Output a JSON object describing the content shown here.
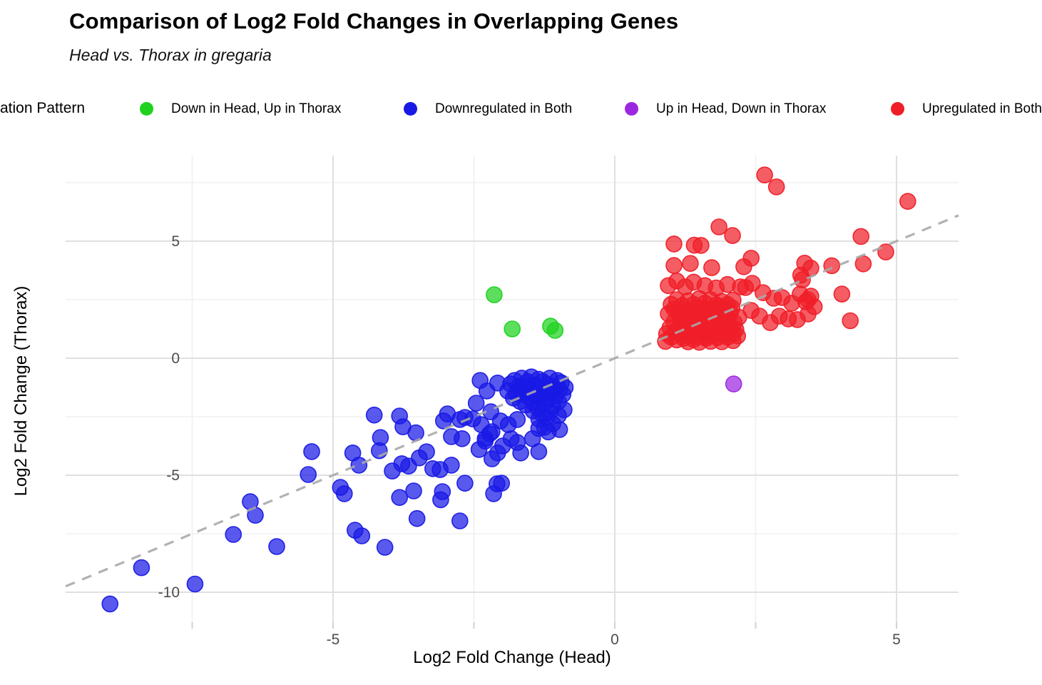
{
  "header": {
    "title": "Comparison of Log2 Fold Changes in Overlapping Genes",
    "subtitle": "Head vs. Thorax in gregaria"
  },
  "legend": {
    "title_visible": "ation Pattern",
    "items": [
      {
        "label": "Down in Head, Up in Thorax",
        "color": "#1ed21e"
      },
      {
        "label": "Downregulated in Both",
        "color": "#1919e6"
      },
      {
        "label": "Up in Head, Down in Thorax",
        "color": "#9c27e0"
      },
      {
        "label": "Upregulated in Both",
        "color": "#f01e28"
      }
    ]
  },
  "axes": {
    "x_title": "Log2 Fold Change (Head)",
    "y_title": "Log2 Fold Change (Thorax)"
  },
  "chart_data": {
    "type": "scatter",
    "title": "Comparison of Log2 Fold Changes in Overlapping Genes",
    "subtitle": "Head vs. Thorax in gregaria",
    "xlabel": "Log2 Fold Change (Head)",
    "ylabel": "Log2 Fold Change (Thorax)",
    "xlim": [
      -9.75,
      6.1
    ],
    "ylim": [
      -11.5,
      8.66
    ],
    "x_ticks_major": [
      -5,
      0,
      5
    ],
    "x_ticks_minor": [
      -7.5,
      -2.5,
      2.5
    ],
    "y_ticks_major": [
      5,
      0,
      -5,
      -10
    ],
    "y_ticks_minor": [
      7.5,
      2.5,
      -2.5,
      -7.5
    ],
    "grid": true,
    "legend_position": "top",
    "identity_line": {
      "style": "dashed",
      "color": "#a9a9a9",
      "slope": 1,
      "intercept": 0
    },
    "series": [
      {
        "name": "Down in Head, Up in Thorax",
        "color": "#1ed21e",
        "points": [
          [
            -2.14,
            2.71
          ],
          [
            -1.82,
            1.25
          ],
          [
            -1.14,
            1.37
          ],
          [
            -1.06,
            1.19
          ]
        ]
      },
      {
        "name": "Downregulated in Both",
        "color": "#1919e6",
        "points": [
          [
            -1.9,
            -1.4
          ],
          [
            -1.85,
            -1.1
          ],
          [
            -1.8,
            -1.7
          ],
          [
            -1.78,
            -0.95
          ],
          [
            -1.75,
            -1.5
          ],
          [
            -1.7,
            -1.2
          ],
          [
            -1.68,
            -1.85
          ],
          [
            -1.65,
            -0.85
          ],
          [
            -1.62,
            -1.55
          ],
          [
            -1.6,
            -1.25
          ],
          [
            -1.58,
            -2.0
          ],
          [
            -1.55,
            -1.0
          ],
          [
            -1.52,
            -1.65
          ],
          [
            -1.5,
            -1.35
          ],
          [
            -1.48,
            -0.8
          ],
          [
            -1.45,
            -1.9
          ],
          [
            -1.42,
            -1.15
          ],
          [
            -1.4,
            -1.55
          ],
          [
            -1.38,
            -2.1
          ],
          [
            -1.35,
            -0.9
          ],
          [
            -1.32,
            -1.7
          ],
          [
            -1.3,
            -1.3
          ],
          [
            -1.28,
            -1.0
          ],
          [
            -1.25,
            -1.95
          ],
          [
            -1.22,
            -1.5
          ],
          [
            -1.2,
            -1.12
          ],
          [
            -1.18,
            -1.75
          ],
          [
            -1.15,
            -0.85
          ],
          [
            -1.12,
            -1.4
          ],
          [
            -1.1,
            -2.05
          ],
          [
            -1.08,
            -1.2
          ],
          [
            -1.05,
            -1.6
          ],
          [
            -1.02,
            -0.95
          ],
          [
            -1.0,
            -1.85
          ],
          [
            -0.98,
            -1.35
          ],
          [
            -0.95,
            -1.05
          ],
          [
            -0.92,
            -1.55
          ],
          [
            -0.9,
            -2.2
          ],
          [
            -0.88,
            -1.25
          ],
          [
            -1.3,
            -2.35
          ],
          [
            -1.15,
            -2.3
          ],
          [
            -1.45,
            -2.25
          ],
          [
            -1.0,
            -2.45
          ],
          [
            -1.2,
            -2.55
          ],
          [
            -1.35,
            -2.6
          ],
          [
            -1.1,
            -2.8
          ],
          [
            -1.25,
            -2.95
          ],
          [
            -0.98,
            -3.05
          ],
          [
            -1.35,
            -3.0
          ],
          [
            -1.18,
            -3.15
          ],
          [
            -2.39,
            -0.95
          ],
          [
            -2.08,
            -1.06
          ],
          [
            -2.46,
            -1.92
          ],
          [
            -2.27,
            -1.4
          ],
          [
            -2.2,
            -2.29
          ],
          [
            -2.52,
            -2.59
          ],
          [
            -2.37,
            -2.84
          ],
          [
            -2.18,
            -3.14
          ],
          [
            -2.03,
            -2.68
          ],
          [
            -1.89,
            -2.84
          ],
          [
            -1.73,
            -2.62
          ],
          [
            -1.84,
            -3.44
          ],
          [
            -1.99,
            -3.75
          ],
          [
            -1.73,
            -3.6
          ],
          [
            -1.46,
            -3.44
          ],
          [
            -1.35,
            -3.99
          ],
          [
            -1.67,
            -4.05
          ],
          [
            -2.08,
            -4.05
          ],
          [
            -2.3,
            -3.44
          ],
          [
            -2.66,
            -2.53
          ],
          [
            -2.75,
            -2.62
          ],
          [
            -2.97,
            -2.38
          ],
          [
            -3.04,
            -2.68
          ],
          [
            -2.9,
            -3.35
          ],
          [
            -2.71,
            -3.44
          ],
          [
            -2.22,
            -3.23
          ],
          [
            -2.3,
            -3.54
          ],
          [
            -2.41,
            -3.9
          ],
          [
            -2.18,
            -4.3
          ],
          [
            -2.09,
            -5.37
          ],
          [
            -2.15,
            -5.79
          ],
          [
            -2.01,
            -5.34
          ],
          [
            -2.66,
            -5.34
          ],
          [
            -2.75,
            -6.95
          ],
          [
            -2.9,
            -4.57
          ],
          [
            -3.1,
            -4.76
          ],
          [
            -3.23,
            -4.72
          ],
          [
            -3.34,
            -4.0
          ],
          [
            -3.47,
            -4.26
          ],
          [
            -3.53,
            -3.19
          ],
          [
            -3.76,
            -2.93
          ],
          [
            -3.82,
            -2.47
          ],
          [
            -4.27,
            -2.43
          ],
          [
            -4.16,
            -3.39
          ],
          [
            -4.18,
            -3.95
          ],
          [
            -3.95,
            -4.82
          ],
          [
            -3.78,
            -4.51
          ],
          [
            -3.66,
            -4.61
          ],
          [
            -3.82,
            -5.95
          ],
          [
            -3.57,
            -5.67
          ],
          [
            -3.06,
            -5.7
          ],
          [
            -3.09,
            -6.05
          ],
          [
            -3.51,
            -6.85
          ],
          [
            -4.08,
            -8.08
          ],
          [
            -4.61,
            -7.35
          ],
          [
            -4.49,
            -7.59
          ],
          [
            -4.87,
            -5.52
          ],
          [
            -4.8,
            -5.79
          ],
          [
            -5.38,
            -3.99
          ],
          [
            -5.44,
            -4.97
          ],
          [
            -4.65,
            -4.05
          ],
          [
            -4.54,
            -4.57
          ],
          [
            -6.47,
            -6.13
          ],
          [
            -6.38,
            -6.71
          ],
          [
            -6.77,
            -7.53
          ],
          [
            -6.0,
            -8.05
          ],
          [
            -7.45,
            -9.65
          ],
          [
            -8.4,
            -8.95
          ],
          [
            -8.96,
            -10.5
          ]
        ]
      },
      {
        "name": "Up in Head, Down in Thorax",
        "color": "#9c27e0",
        "points": [
          [
            2.11,
            -1.1
          ]
        ]
      },
      {
        "name": "Upregulated in Both",
        "color": "#f01e28",
        "points": [
          [
            0.92,
            1.05
          ],
          [
            0.98,
            1.3
          ],
          [
            1.0,
            0.9
          ],
          [
            1.05,
            1.55
          ],
          [
            1.08,
            1.15
          ],
          [
            1.1,
            0.78
          ],
          [
            1.12,
            1.95
          ],
          [
            1.15,
            1.35
          ],
          [
            1.18,
            1.02
          ],
          [
            1.2,
            1.7
          ],
          [
            1.22,
            0.85
          ],
          [
            1.25,
            1.45
          ],
          [
            1.28,
            1.18
          ],
          [
            1.3,
            2.05
          ],
          [
            1.32,
            0.95
          ],
          [
            1.35,
            1.6
          ],
          [
            1.38,
            1.25
          ],
          [
            1.4,
            0.8
          ],
          [
            1.42,
            1.9
          ],
          [
            1.45,
            1.1
          ],
          [
            1.48,
            1.5
          ],
          [
            1.5,
            0.92
          ],
          [
            1.52,
            1.75
          ],
          [
            1.55,
            1.3
          ],
          [
            1.58,
            1.05
          ],
          [
            1.6,
            2.1
          ],
          [
            1.62,
            0.85
          ],
          [
            1.65,
            1.55
          ],
          [
            1.68,
            1.2
          ],
          [
            1.7,
            0.95
          ],
          [
            1.72,
            1.8
          ],
          [
            1.75,
            1.4
          ],
          [
            1.78,
            1.08
          ],
          [
            1.8,
            2.0
          ],
          [
            1.82,
            0.88
          ],
          [
            1.85,
            1.62
          ],
          [
            1.88,
            1.28
          ],
          [
            1.9,
            1.0
          ],
          [
            1.92,
            1.85
          ],
          [
            1.95,
            1.48
          ],
          [
            1.98,
            1.15
          ],
          [
            2.0,
            0.9
          ],
          [
            2.02,
            1.68
          ],
          [
            2.05,
            1.32
          ],
          [
            2.08,
            2.15
          ],
          [
            2.1,
            1.05
          ],
          [
            2.12,
            1.52
          ],
          [
            2.15,
            1.22
          ],
          [
            2.18,
            0.95
          ],
          [
            2.2,
            1.75
          ],
          [
            1.0,
            2.3
          ],
          [
            1.1,
            2.5
          ],
          [
            1.2,
            2.25
          ],
          [
            1.3,
            2.45
          ],
          [
            1.4,
            2.3
          ],
          [
            1.5,
            2.55
          ],
          [
            1.6,
            2.35
          ],
          [
            1.7,
            2.5
          ],
          [
            1.8,
            2.28
          ],
          [
            1.9,
            2.42
          ],
          [
            2.0,
            2.3
          ],
          [
            2.1,
            2.48
          ],
          [
            0.95,
            1.9
          ],
          [
            1.05,
            2.1
          ],
          [
            1.25,
            1.95
          ],
          [
            1.45,
            2.15
          ],
          [
            1.65,
            2.05
          ],
          [
            1.85,
            2.2
          ],
          [
            2.05,
            1.95
          ],
          [
            1.15,
            1.85
          ],
          [
            1.35,
            1.78
          ],
          [
            1.55,
            1.95
          ],
          [
            1.75,
            2.12
          ],
          [
            1.95,
            2.05
          ],
          [
            0.9,
            0.72
          ],
          [
            1.3,
            0.7
          ],
          [
            1.7,
            0.72
          ],
          [
            2.1,
            0.75
          ],
          [
            1.5,
            0.68
          ],
          [
            1.9,
            0.7
          ],
          [
            0.95,
            3.1
          ],
          [
            1.1,
            3.3
          ],
          [
            1.25,
            3.05
          ],
          [
            1.4,
            3.25
          ],
          [
            1.6,
            3.1
          ],
          [
            1.8,
            3.0
          ],
          [
            2.0,
            3.15
          ],
          [
            2.32,
            3.02
          ],
          [
            2.44,
            3.2
          ],
          [
            2.63,
            2.8
          ],
          [
            2.82,
            2.56
          ],
          [
            2.97,
            2.59
          ],
          [
            3.14,
            2.35
          ],
          [
            3.29,
            2.74
          ],
          [
            3.43,
            2.5
          ],
          [
            3.54,
            2.2
          ],
          [
            2.42,
            2.04
          ],
          [
            2.57,
            1.8
          ],
          [
            2.76,
            1.52
          ],
          [
            2.92,
            1.8
          ],
          [
            3.08,
            1.68
          ],
          [
            3.24,
            1.65
          ],
          [
            3.43,
            1.89
          ],
          [
            3.3,
            3.55
          ],
          [
            3.33,
            3.35
          ],
          [
            2.66,
            7.83
          ],
          [
            2.87,
            7.32
          ],
          [
            5.2,
            6.7
          ],
          [
            1.85,
            5.61
          ],
          [
            2.09,
            5.24
          ],
          [
            4.37,
            5.2
          ],
          [
            1.05,
            4.88
          ],
          [
            1.41,
            4.83
          ],
          [
            1.53,
            4.82
          ],
          [
            4.81,
            4.54
          ],
          [
            2.42,
            4.27
          ],
          [
            1.34,
            4.05
          ],
          [
            3.37,
            4.06
          ],
          [
            4.41,
            4.03
          ],
          [
            1.05,
            3.96
          ],
          [
            2.29,
            3.91
          ],
          [
            1.72,
            3.87
          ],
          [
            3.85,
            3.95
          ],
          [
            3.48,
            3.85
          ],
          [
            4.03,
            2.74
          ],
          [
            4.18,
            1.6
          ],
          [
            3.48,
            2.65
          ],
          [
            3.39,
            2.41
          ],
          [
            2.23,
            3.05
          ]
        ]
      }
    ]
  }
}
